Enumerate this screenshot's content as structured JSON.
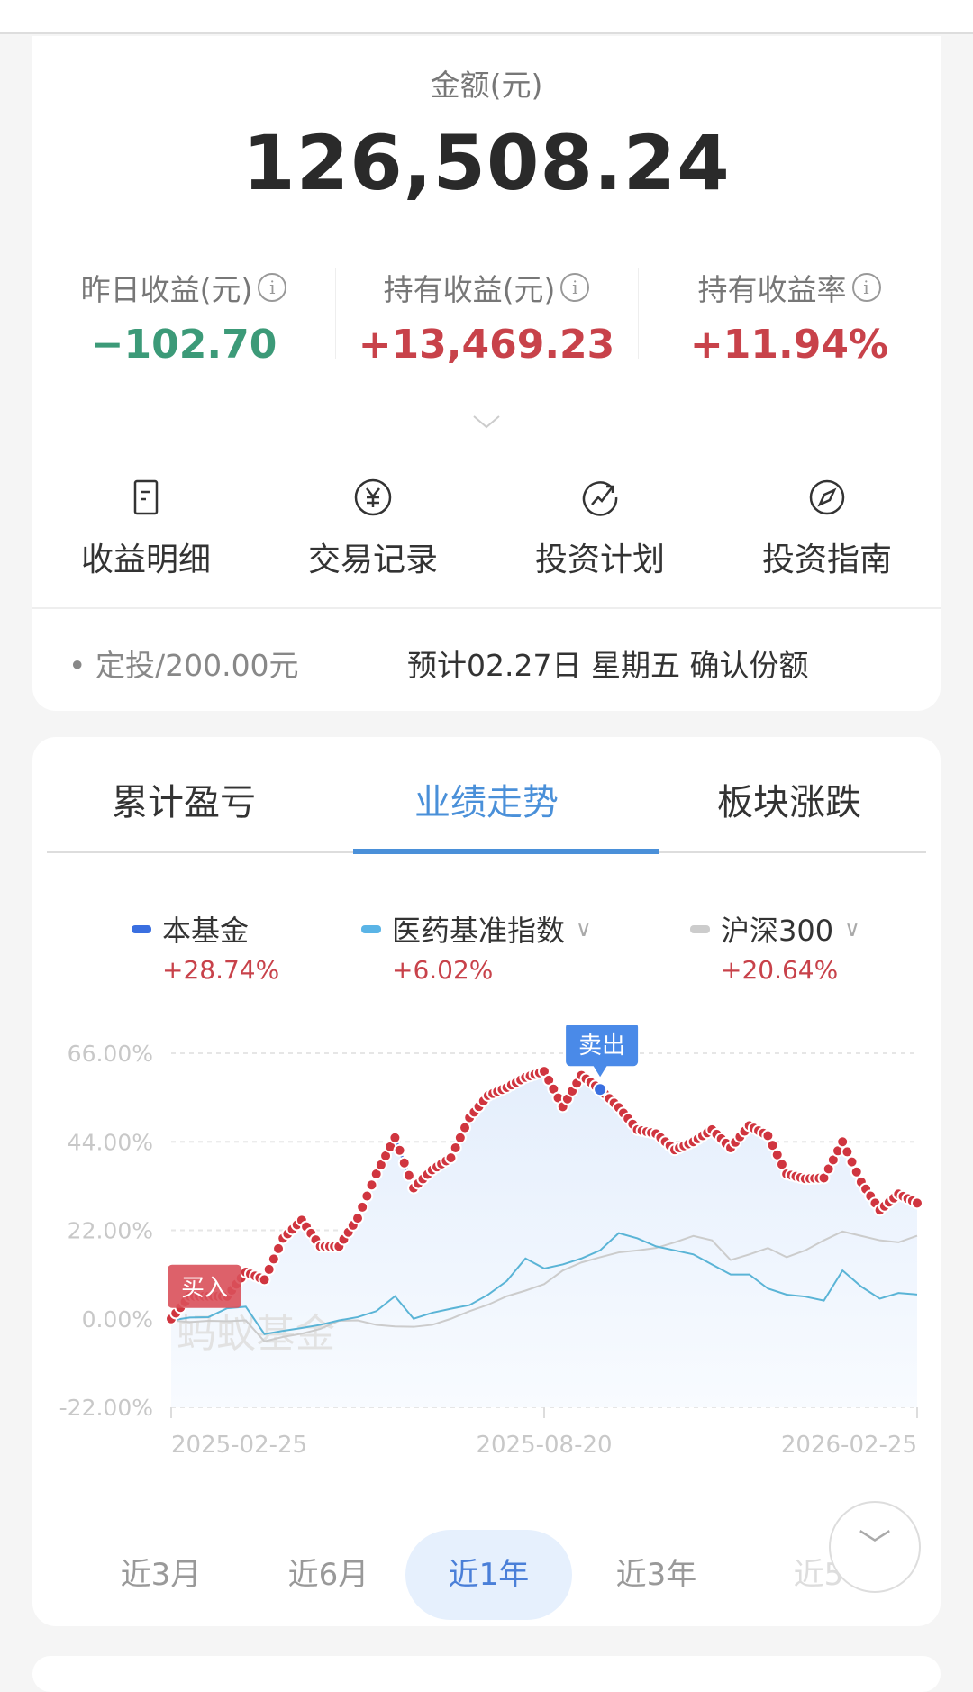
{
  "summary": {
    "amount_label": "金额(元)",
    "amount": "126,508.24",
    "metrics": [
      {
        "label": "昨日收益(元)",
        "value": "−102.70",
        "color": "#3c9a78"
      },
      {
        "label": "持有收益(元)",
        "value": "+13,469.23",
        "color": "#c8424a"
      },
      {
        "label": "持有收益率",
        "value": "+11.94%",
        "color": "#c8424a"
      }
    ]
  },
  "actions": [
    {
      "label": "收益明细",
      "icon": "document-icon"
    },
    {
      "label": "交易记录",
      "icon": "yen-icon"
    },
    {
      "label": "投资计划",
      "icon": "trend-icon"
    },
    {
      "label": "投资指南",
      "icon": "compass-icon"
    }
  ],
  "plan": {
    "text": "定投/200.00元",
    "confirm": "预计02.27日 星期五 确认份额"
  },
  "tabs": [
    "累计盈亏",
    "业绩走势",
    "板块涨跌"
  ],
  "active_tab": 1,
  "legend": [
    {
      "name": "本基金",
      "value": "+28.74%",
      "color": "#3a6fe0"
    },
    {
      "name": "医药基准指数",
      "value": "+6.02%",
      "color": "#5ab4e6"
    },
    {
      "name": "沪深300",
      "value": "+20.64%",
      "color": "#cccccc"
    }
  ],
  "watermark": "蚂蚁基金",
  "chart_data": {
    "type": "line",
    "x_ticks": [
      "2025-02-25",
      "2025-08-20",
      "2026-02-25"
    ],
    "xlim": [
      "2025-02-25",
      "2026-02-25"
    ],
    "y_ticks": [
      "66.00%",
      "44.00%",
      "22.00%",
      "0.00%",
      "-22.00%"
    ],
    "ylim": [
      -22,
      66
    ],
    "grid": true,
    "series": [
      {
        "name": "本基金",
        "color": "#3a6fe0",
        "marker_color": "#d0353f",
        "values": [
          0,
          5.6,
          5.6,
          5.6,
          11.6,
          9.7,
          20,
          24.5,
          18,
          18,
          25,
          36,
          45,
          32.5,
          37,
          40,
          50,
          55.5,
          57.5,
          60,
          61.5,
          52.7,
          60.5,
          57,
          52.5,
          47,
          46,
          42,
          44,
          47,
          42.5,
          48,
          45.5,
          36,
          34.8,
          35,
          44,
          34,
          27,
          31,
          28.74
        ]
      },
      {
        "name": "医药基准指数",
        "color": "#5ab4d6",
        "values": [
          -0.4,
          0.3,
          0.4,
          2.6,
          3,
          -3.8,
          -3,
          -2.3,
          -1.5,
          -0.4,
          0.4,
          1.9,
          5.6,
          0,
          1.5,
          2.5,
          3.4,
          6,
          9.4,
          15,
          12.5,
          13.5,
          15,
          17,
          21.3,
          20,
          18,
          17,
          16,
          13.5,
          11,
          11,
          7.5,
          6,
          5.5,
          4.5,
          12,
          8,
          5,
          6.4,
          6.02
        ]
      },
      {
        "name": "沪深300",
        "color": "#cccccc",
        "values": [
          -0.4,
          -0.8,
          -0.5,
          -0.6,
          -0.4,
          -5.6,
          -4.5,
          -3.7,
          -2.5,
          -0.5,
          -0.4,
          -1.5,
          -1.9,
          -2,
          -1.5,
          0,
          1.9,
          3.5,
          5.6,
          7,
          8.6,
          12,
          14,
          15.3,
          16.5,
          17,
          17.6,
          19,
          20.6,
          19.5,
          14.6,
          16,
          17.6,
          15.3,
          17,
          19.5,
          21.7,
          20.6,
          19.5,
          19,
          20.64
        ]
      }
    ],
    "annotations": [
      {
        "label": "买入",
        "index": 0,
        "color": "#d9505a"
      },
      {
        "label": "卖出",
        "index": 23,
        "color": "#4a8ae8"
      }
    ]
  },
  "ranges": [
    "近3月",
    "近6月",
    "近1年",
    "近3年",
    "近5"
  ],
  "active_range": 2
}
